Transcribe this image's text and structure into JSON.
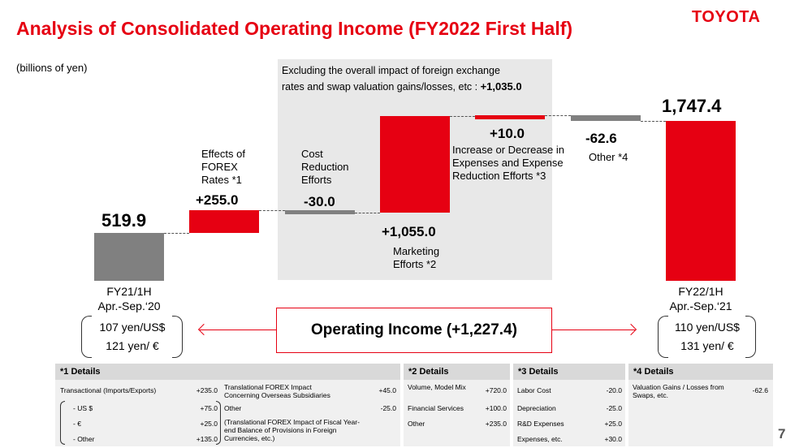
{
  "title": "Analysis of Consolidated Operating Income  (FY2022 First Half)",
  "logo": "TOYOTA",
  "units": "(billions of yen)",
  "panel": {
    "line1": "Excluding the overall impact of foreign exchange",
    "line2": "rates and swap valuation gains/losses, etc :",
    "value": "+1,035.0"
  },
  "chart_data": {
    "type": "waterfall",
    "units": "billions of yen",
    "steps": [
      {
        "label_lines": [
          "FY21/1H",
          "Apr.-Sep.‘20"
        ],
        "value": 519.9,
        "value_label": "519.9",
        "kind": "total"
      },
      {
        "label_lines": [
          "Effects of",
          "FOREX",
          "Rates *1"
        ],
        "value": 255.0,
        "value_label": "+255.0",
        "kind": "delta"
      },
      {
        "label_lines": [
          "Cost",
          "Reduction",
          "Efforts"
        ],
        "value": -30.0,
        "value_label": "-30.0",
        "kind": "delta"
      },
      {
        "label_lines": [
          "Marketing",
          "Efforts *2"
        ],
        "value": 1055.0,
        "value_label": "+1,055.0",
        "kind": "delta"
      },
      {
        "label_lines": [
          "Increase or Decrease in",
          "Expenses and Expense",
          "Reduction Efforts *3"
        ],
        "value": 10.0,
        "value_label": "+10.0",
        "kind": "delta"
      },
      {
        "label_lines": [
          "Other *4"
        ],
        "value": -62.6,
        "value_label": "-62.6",
        "kind": "delta"
      },
      {
        "label_lines": [
          "FY22/1H",
          "Apr.-Sep.‘21"
        ],
        "value": 1747.4,
        "value_label": "1,747.4",
        "kind": "total"
      }
    ],
    "colors": {
      "total_prev": "#808080",
      "increase": "#e60012",
      "decrease": "#808080",
      "total_curr": "#e60012"
    }
  },
  "rates_left": [
    "107 yen/US$",
    "121 yen/ €"
  ],
  "rates_right": [
    "110 yen/US$",
    "131 yen/ €"
  ],
  "operating_income": "Operating Income (+1,227.4)",
  "details": {
    "d1": {
      "head": "*1 Details",
      "left": [
        {
          "label": "Transactional (Imports/Exports)",
          "value": "+235.0"
        },
        {
          "label": "- US $",
          "value": "+75.0"
        },
        {
          "label": "- €",
          "value": "+25.0"
        },
        {
          "label": "- Other",
          "value": "+135.0"
        }
      ],
      "right": [
        {
          "label": "Translational FOREX Impact Concerning Overseas Subsidiaries",
          "value": "+45.0"
        },
        {
          "label": "Other",
          "value": "-25.0"
        },
        {
          "label": "(Translational FOREX Impact of Fiscal Year-end Balance of Provisions in Foreign Currencies, etc.)",
          "value": ""
        }
      ]
    },
    "d2": {
      "head": "*2 Details",
      "rows": [
        {
          "label": "Volume, Model Mix",
          "value": "+720.0"
        },
        {
          "label": "Financial Services",
          "value": "+100.0"
        },
        {
          "label": "Other",
          "value": "+235.0"
        }
      ]
    },
    "d3": {
      "head": "*3 Details",
      "rows": [
        {
          "label": "Labor Cost",
          "value": "-20.0"
        },
        {
          "label": "Depreciation",
          "value": "-25.0"
        },
        {
          "label": "R&D Expenses",
          "value": "+25.0"
        },
        {
          "label": "Expenses, etc.",
          "value": "+30.0"
        }
      ]
    },
    "d4": {
      "head": "*4 Details",
      "rows": [
        {
          "label": "Valuation Gains / Losses from Swaps, etc.",
          "value": "-62.6"
        }
      ]
    }
  },
  "page_number": "7"
}
